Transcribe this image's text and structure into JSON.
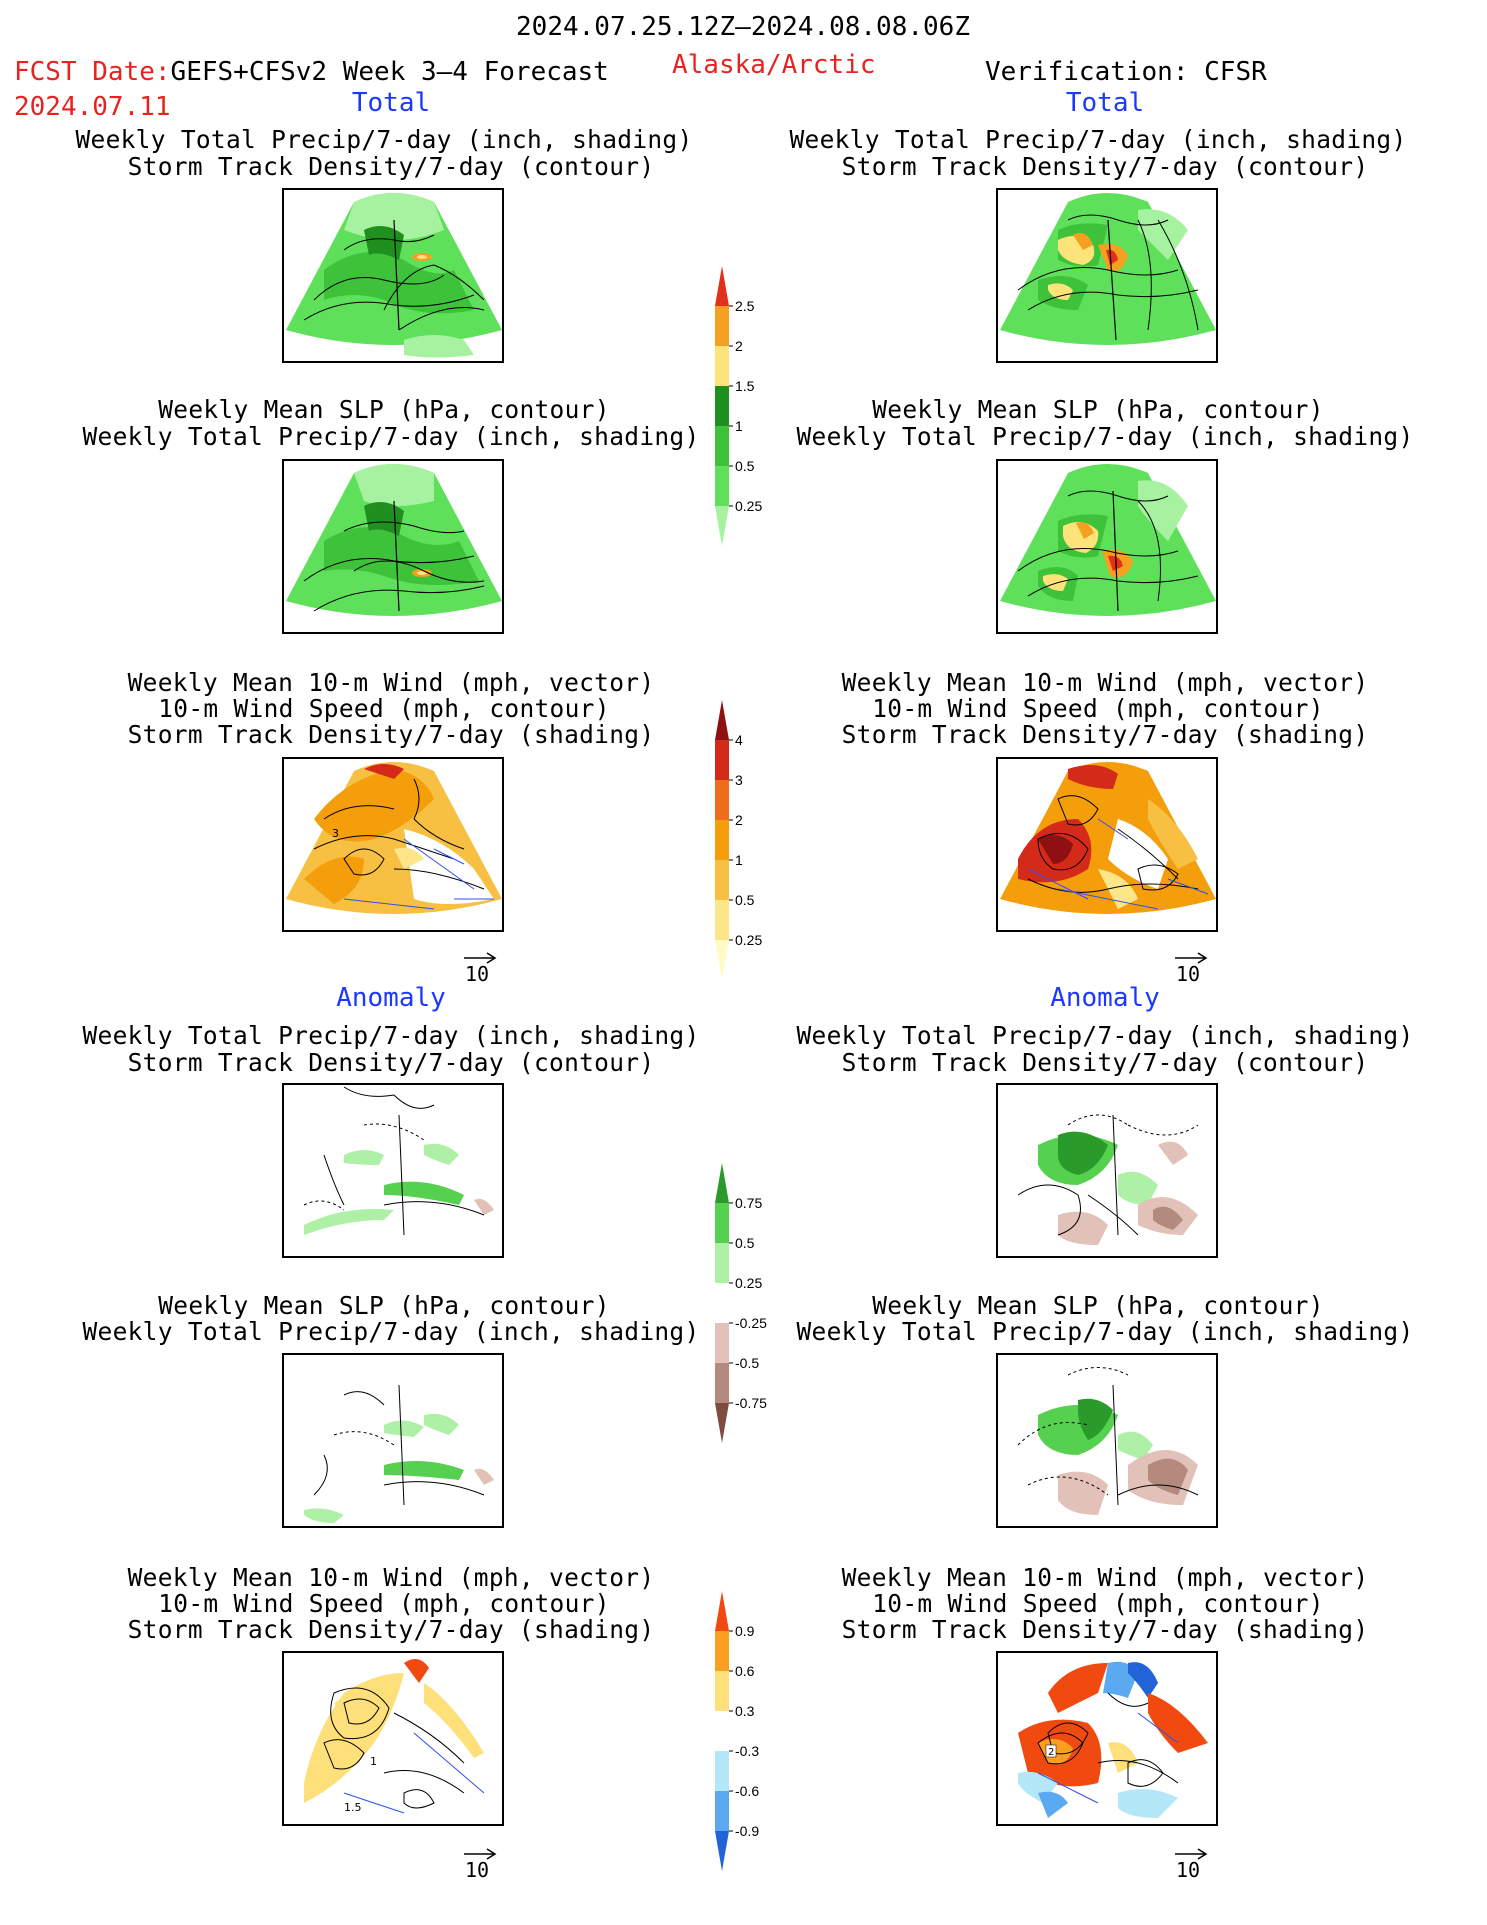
{
  "header": {
    "date_range": "2024.07.25.12Z–2024.08.08.06Z",
    "fcst_label": "FCST Date:",
    "model": "GEFS+CFSv2 Week 3–4 Forecast",
    "region": "Alaska/Arctic",
    "fcst_date": "2024.07.11",
    "verification": "Verification: CFSR"
  },
  "sections": {
    "total_left": "Total",
    "total_right": "Total",
    "anomaly_left": "Anomaly",
    "anomaly_right": "Anomaly"
  },
  "titles": {
    "precip": [
      "Weekly Total Precip/7-day (inch, shading)",
      "Storm Track Density/7-day (contour)"
    ],
    "slp": [
      "Weekly Mean SLP (hPa, contour)",
      "Weekly Total Precip/7-day (inch, shading)"
    ],
    "wind": [
      "Weekly Mean 10-m Wind (mph, vector)",
      "10-m Wind Speed (mph, contour)",
      "Storm Track Density/7-day (shading)"
    ]
  },
  "reference_vector_label": "10",
  "contour_labels": {
    "fc_wind_total": "3",
    "fc_wind_anom_a": "1",
    "fc_wind_anom_b": "1.5",
    "ob_wind_anom": "2"
  },
  "colorbars": {
    "precip_total": {
      "labels": [
        "0.25",
        "0.5",
        "1",
        "1.5",
        "2",
        "2.5"
      ],
      "colors": [
        "#a6f2a0",
        "#5ee05a",
        "#3ec23a",
        "#1f8f1f",
        "#fde37a",
        "#f5a020",
        "#e4301a"
      ]
    },
    "storm_total": {
      "labels": [
        "0.25",
        "0.5",
        "1",
        "2",
        "3",
        "4"
      ],
      "colors": [
        "#fffbc6",
        "#fde68a",
        "#f7c042",
        "#f59e0b",
        "#ef6c1a",
        "#d42a1a",
        "#8f1010"
      ]
    },
    "precip_anom": {
      "labels": [
        "0.75",
        "0.5",
        "0.25",
        "-0.25",
        "-0.5",
        "-0.75"
      ],
      "colors": [
        "#2a9a2a",
        "#55d14f",
        "#aef0a6",
        "#ffffff",
        "#e1c1b8",
        "#b48a7e",
        "#7e4d40"
      ]
    },
    "storm_anom": {
      "labels": [
        "0.9",
        "0.6",
        "0.3",
        "-0.3",
        "-0.6",
        "-0.9"
      ],
      "colors": [
        "#f04a10",
        "#fb9f20",
        "#fde07a",
        "#ffffff",
        "#b4e8f8",
        "#5ba9f0",
        "#2064d8"
      ]
    }
  },
  "colors": {
    "title_red": "#e8231f",
    "section_blue": "#1c38ff",
    "vector_blue": "#3050e8"
  }
}
